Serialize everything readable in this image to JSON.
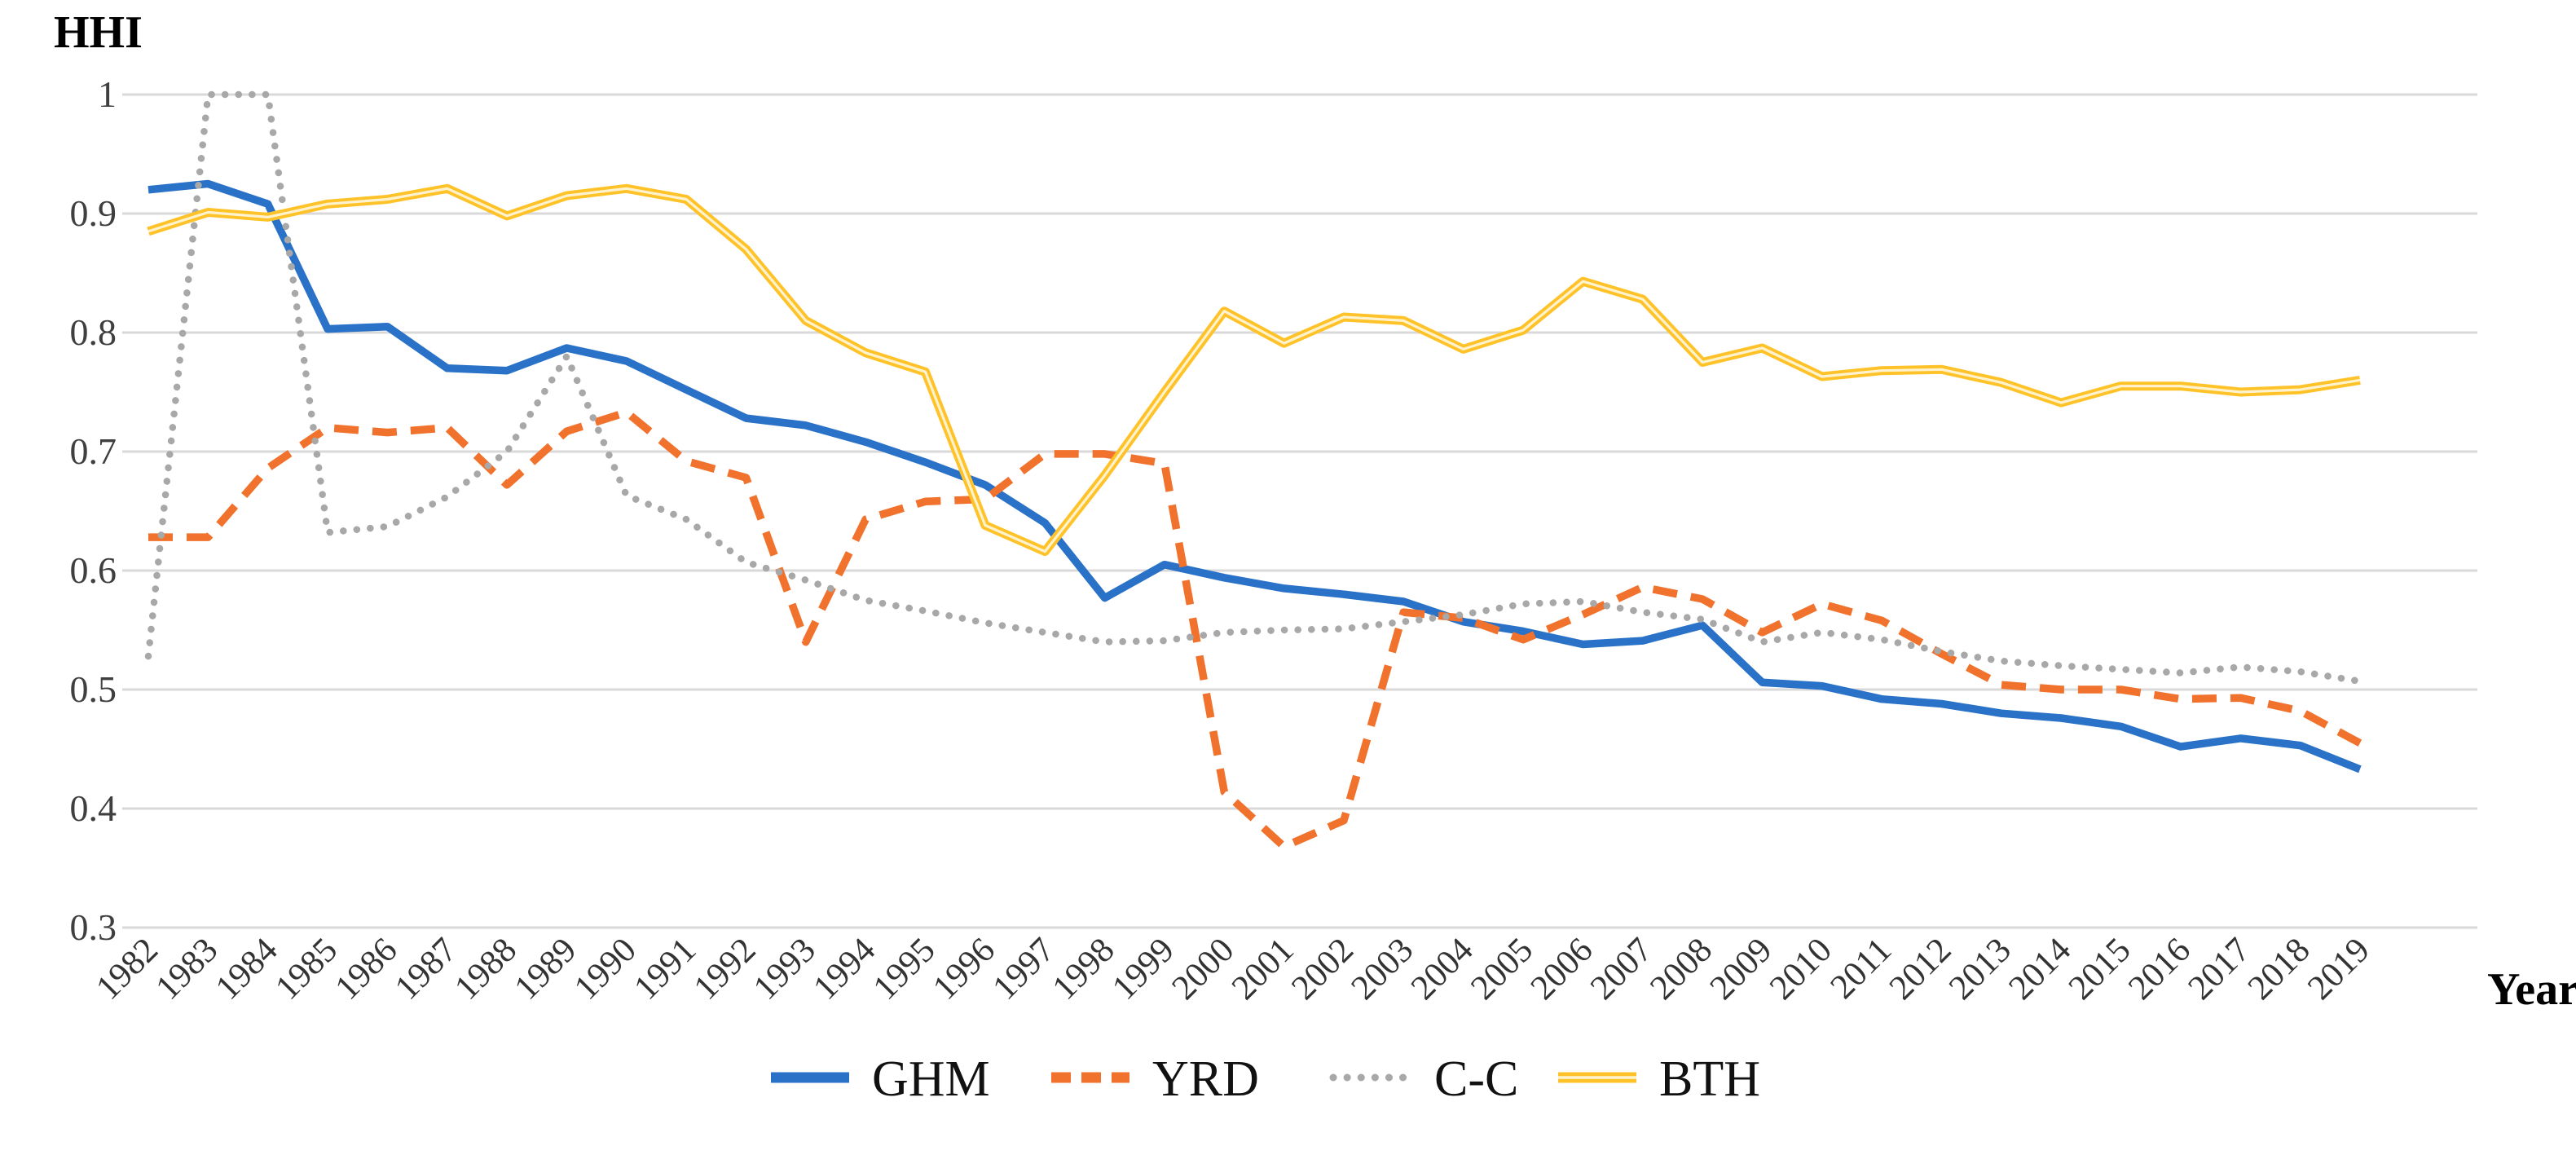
{
  "title": "HHI",
  "chart_data": {
    "type": "line",
    "ylabel": "HHI",
    "xlabel": "Year",
    "ylim": [
      0.3,
      1.0
    ],
    "yticks": [
      1,
      0.9,
      0.8,
      0.7,
      0.6,
      0.5,
      0.4,
      0.3
    ],
    "ytick_labels": [
      "1",
      "0.9",
      "0.8",
      "0.7",
      "0.6",
      "0.5",
      "0.4",
      "0.3"
    ],
    "grid": true,
    "legend_position": "bottom",
    "x": [
      1982,
      1983,
      1984,
      1985,
      1986,
      1987,
      1988,
      1989,
      1990,
      1991,
      1992,
      1993,
      1994,
      1995,
      1996,
      1997,
      1998,
      1999,
      2000,
      2001,
      2002,
      2003,
      2004,
      2005,
      2006,
      2007,
      2008,
      2009,
      2010,
      2011,
      2012,
      2013,
      2014,
      2015,
      2016,
      2017,
      2018,
      2019
    ],
    "series": [
      {
        "name": "GHM",
        "color": "#2A72C8",
        "style": "solid",
        "values": [
          0.92,
          0.925,
          0.908,
          0.803,
          0.805,
          0.77,
          0.768,
          0.787,
          0.776,
          0.752,
          0.728,
          0.722,
          0.708,
          0.691,
          0.672,
          0.64,
          0.577,
          0.605,
          0.594,
          0.585,
          0.58,
          0.574,
          0.557,
          0.549,
          0.538,
          0.541,
          0.554,
          0.506,
          0.503,
          0.492,
          0.488,
          0.48,
          0.476,
          0.469,
          0.452,
          0.459,
          0.453,
          0.433
        ]
      },
      {
        "name": "YRD",
        "color": "#F0722C",
        "style": "dashed",
        "values": [
          0.628,
          0.628,
          0.686,
          0.72,
          0.716,
          0.72,
          0.672,
          0.717,
          0.733,
          0.692,
          0.678,
          0.54,
          0.643,
          0.658,
          0.66,
          0.698,
          0.698,
          0.69,
          0.414,
          0.368,
          0.39,
          0.565,
          0.56,
          0.542,
          0.563,
          0.586,
          0.576,
          0.548,
          0.572,
          0.558,
          0.53,
          0.504,
          0.5,
          0.5,
          0.492,
          0.493,
          0.482,
          0.455
        ]
      },
      {
        "name": "C-C",
        "color": "#A8A8A8",
        "style": "dotted",
        "values": [
          0.528,
          1.0,
          1.0,
          0.632,
          0.637,
          0.662,
          0.7,
          0.78,
          0.663,
          0.643,
          0.607,
          0.592,
          0.575,
          0.566,
          0.556,
          0.548,
          0.54,
          0.541,
          0.548,
          0.55,
          0.551,
          0.557,
          0.563,
          0.572,
          0.574,
          0.565,
          0.559,
          0.54,
          0.548,
          0.542,
          0.532,
          0.524,
          0.52,
          0.517,
          0.514,
          0.519,
          0.515,
          0.507
        ]
      },
      {
        "name": "BTH",
        "color": "#FFC329",
        "core_color": "#FFF3CF",
        "style": "double",
        "values": [
          0.885,
          0.901,
          0.897,
          0.908,
          0.912,
          0.921,
          0.898,
          0.915,
          0.921,
          0.912,
          0.87,
          0.81,
          0.783,
          0.767,
          0.638,
          0.616,
          0.68,
          0.75,
          0.818,
          0.791,
          0.813,
          0.81,
          0.786,
          0.802,
          0.843,
          0.828,
          0.775,
          0.787,
          0.763,
          0.768,
          0.769,
          0.758,
          0.741,
          0.755,
          0.755,
          0.75,
          0.752,
          0.76
        ]
      }
    ],
    "colors": {
      "gridline": "#D9D9D9",
      "tick_label": "#3f3f3f",
      "axis_title": "#000000"
    }
  }
}
